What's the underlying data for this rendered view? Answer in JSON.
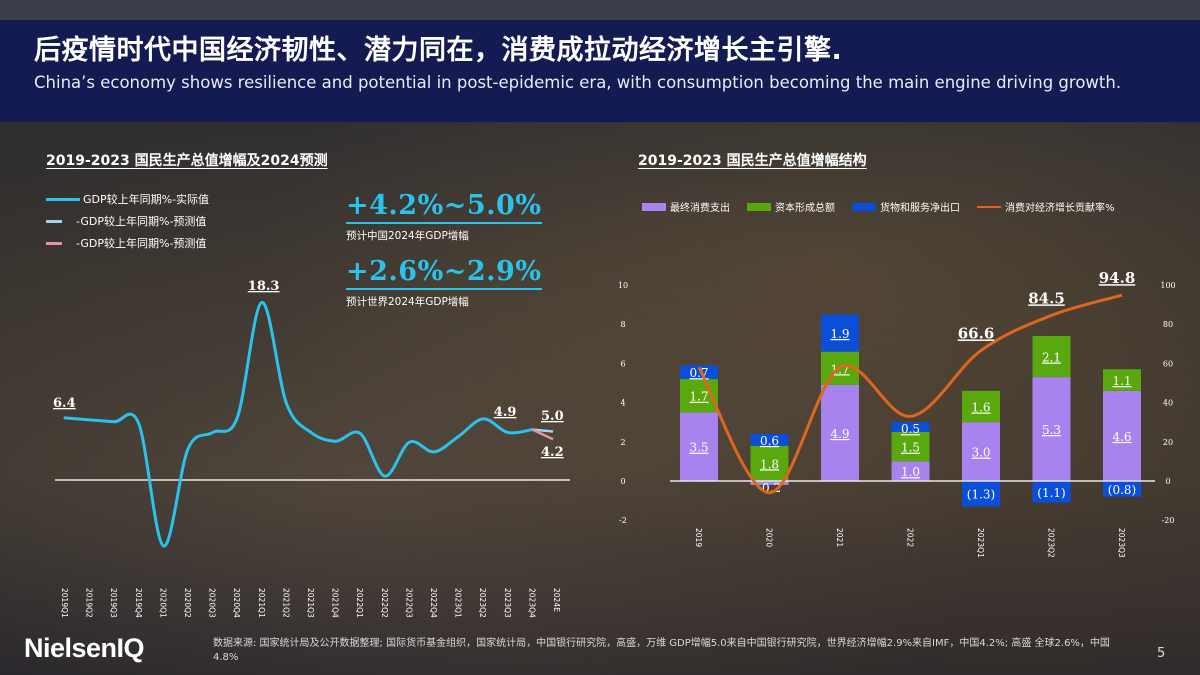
{
  "header": {
    "title": "后疫情时代中国经济韧性、潜力同在，消费成拉动经济增长主引擎.",
    "subtitle": "China’s economy shows resilience and potential in post-epidemic era, with consumption becoming the main engine driving growth."
  },
  "left_panel": {
    "title": "2019-2023 国民生产总值增幅及2024预测",
    "legend": [
      {
        "label": "GDP较上年同期%-实际值",
        "color": "#29c3ec"
      },
      {
        "label": "-GDP较上年同期%-预测值",
        "color": "#9fd6ea"
      },
      {
        "label": "-GDP较上年同期%-预测值",
        "color": "#e38fb0"
      }
    ],
    "forecasts": [
      {
        "value": "+4.2%~5.0%",
        "caption": "预计中国2024年GDP增幅"
      },
      {
        "value": "+2.6%~2.9%",
        "caption": "预计世界2024年GDP增幅"
      }
    ]
  },
  "right_panel": {
    "title": "2019-2023 国民生产总值增幅结构",
    "legend": [
      {
        "label": "最终消费支出",
        "color": "#a883ee",
        "kind": "bar"
      },
      {
        "label": "资本形成总额",
        "color": "#58a80e",
        "kind": "bar"
      },
      {
        "label": "货物和服务净出口",
        "color": "#0b4fd8",
        "kind": "bar"
      },
      {
        "label": "消费对经济增长贡献率%",
        "color": "#e0661f",
        "kind": "line"
      }
    ]
  },
  "chart_data": [
    {
      "type": "line",
      "title": "2019-2023 国民生产总值增幅及2024预测",
      "categories": [
        "2019Q1",
        "2019Q2",
        "2019Q3",
        "2019Q4",
        "2020Q1",
        "2020Q2",
        "2020Q3",
        "2020Q4",
        "2021Q1",
        "2021Q2",
        "2021Q3",
        "2021Q4",
        "2022Q1",
        "2022Q2",
        "2022Q3",
        "2022Q4",
        "2023Q1",
        "2023Q2",
        "2023Q3",
        "2023Q4",
        "2024E"
      ],
      "series": [
        {
          "name": "GDP较上年同期%-实际值",
          "values": [
            6.4,
            6.2,
            6.0,
            5.8,
            -6.8,
            3.2,
            4.9,
            6.4,
            18.3,
            7.9,
            4.9,
            4.0,
            4.8,
            0.4,
            3.9,
            2.9,
            4.5,
            6.3,
            4.9,
            5.2,
            null
          ]
        },
        {
          "name": "-GDP较上年同期%-预测值 (高)",
          "values": [
            null,
            null,
            null,
            null,
            null,
            null,
            null,
            null,
            null,
            null,
            null,
            null,
            null,
            null,
            null,
            null,
            null,
            null,
            null,
            5.2,
            5.0
          ]
        },
        {
          "name": "-GDP较上年同期%-预测值 (低)",
          "values": [
            null,
            null,
            null,
            null,
            null,
            null,
            null,
            null,
            null,
            null,
            null,
            null,
            null,
            null,
            null,
            null,
            null,
            null,
            null,
            5.2,
            4.2
          ]
        }
      ],
      "data_labels": [
        {
          "category": "2019Q1",
          "text": "6.4"
        },
        {
          "category": "2021Q1",
          "text": "18.3"
        },
        {
          "category": "2023Q3",
          "text": "4.9"
        },
        {
          "category": "2024E",
          "text": "5.0"
        },
        {
          "category": "2024E",
          "text": "4.2"
        }
      ],
      "xlabel": "",
      "ylabel": "",
      "ylim": [
        -8,
        20
      ],
      "grid": false,
      "legend_position": "top-left"
    },
    {
      "type": "bar",
      "stacked": true,
      "title": "2019-2023 国民生产总值增幅结构",
      "categories": [
        "2019",
        "2020",
        "2021",
        "2022",
        "2023Q1",
        "2023Q2",
        "2023Q3"
      ],
      "series": [
        {
          "name": "最终消费支出",
          "values": [
            3.5,
            -0.2,
            4.9,
            1.0,
            3.0,
            5.3,
            4.6
          ],
          "labels": [
            "3.5",
            "-0.2",
            "4.9",
            "1.0",
            "3.0",
            "5.3",
            "4.6"
          ]
        },
        {
          "name": "资本形成总额",
          "values": [
            1.7,
            1.8,
            1.7,
            1.5,
            1.6,
            2.1,
            1.1
          ],
          "labels": [
            "1.7",
            "1.8",
            "1.7",
            "1.5",
            "1.6",
            "2.1",
            "1.1"
          ]
        },
        {
          "name": "货物和服务净出口",
          "values": [
            0.7,
            0.6,
            1.9,
            0.5,
            -1.3,
            -1.1,
            -0.8
          ],
          "labels": [
            "0.7",
            "0.6",
            "1.9",
            "0.5",
            "(1.3)",
            "(1.1)",
            "(0.8)"
          ]
        },
        {
          "name": "消费对经济增长贡献率%",
          "type": "line",
          "axis": "right",
          "values": [
            58,
            -6,
            58,
            33,
            66.6,
            84.5,
            94.8
          ],
          "labels": [
            null,
            null,
            null,
            null,
            "66.6",
            "84.5",
            "94.8"
          ]
        }
      ],
      "yaxis_left": {
        "ticks": [
          -2,
          0,
          2,
          4,
          6,
          8,
          10
        ],
        "ylim": [
          -2,
          10
        ]
      },
      "yaxis_right": {
        "ticks": [
          -20,
          0,
          20,
          40,
          60,
          80,
          100
        ],
        "ylim": [
          -20,
          100
        ]
      },
      "legend_position": "top",
      "grid": false
    }
  ],
  "footer": {
    "logo": "NielsenIQ",
    "note": "数据来源: 国家统计局及公开数据整理; 国际货币基金组织，国家统计局，中国银行研究院，高盛，万维 GDP增幅5.0来自中国银行研究院，世界经济增幅2.9%来自IMF，中国4.2%; 高盛 全球2.6%，中国4.8%",
    "page_number": "5"
  }
}
